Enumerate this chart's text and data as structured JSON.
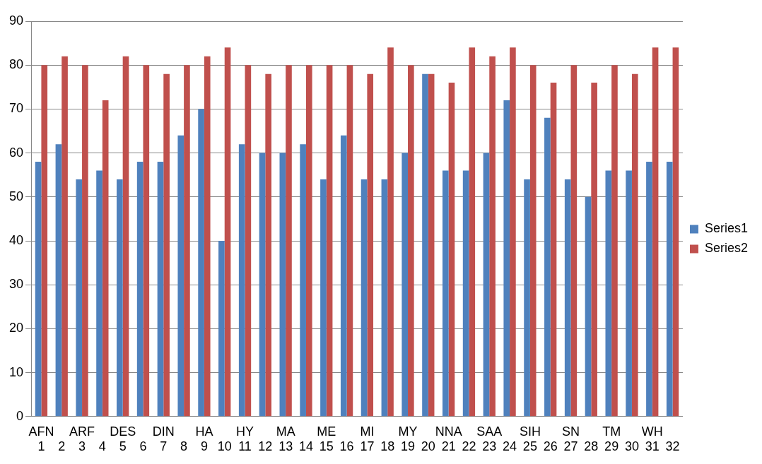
{
  "chart_data": {
    "type": "bar",
    "categories": [
      "AFN\n1",
      "\n2",
      "ARF\n3",
      "\n4",
      "DES\n5",
      "\n6",
      "DIN\n7",
      "\n8",
      "HA\n9",
      "\n10",
      "HY\n11",
      "\n12",
      "MA\n13",
      "\n14",
      "ME\n15",
      "\n16",
      "MI\n17",
      "\n18",
      "MY\n19",
      "\n20",
      "NNA\n21",
      "\n22",
      "SAA\n23",
      "\n24",
      "SIH\n25",
      "\n26",
      "SN\n27",
      "\n28",
      "TM\n29",
      "\n30",
      "WH\n31",
      "\n32"
    ],
    "series": [
      {
        "name": "Series1",
        "color": "#4f81bd",
        "values": [
          58,
          62,
          54,
          56,
          54,
          58,
          58,
          64,
          70,
          40,
          62,
          60,
          60,
          62,
          54,
          64,
          54,
          54,
          60,
          78,
          56,
          56,
          60,
          72,
          54,
          68,
          54,
          50,
          56,
          56,
          58,
          58
        ]
      },
      {
        "name": "Series2",
        "color": "#c0504d",
        "values": [
          80,
          82,
          80,
          72,
          82,
          80,
          78,
          80,
          82,
          84,
          80,
          78,
          80,
          80,
          80,
          80,
          78,
          84,
          80,
          78,
          76,
          84,
          82,
          84,
          80,
          76,
          80,
          76,
          80,
          78,
          84,
          84
        ]
      }
    ],
    "ylim": [
      0,
      90
    ],
    "yticks": [
      0,
      10,
      20,
      30,
      40,
      50,
      60,
      70,
      80,
      90
    ],
    "grid": "y",
    "legend": "right"
  }
}
